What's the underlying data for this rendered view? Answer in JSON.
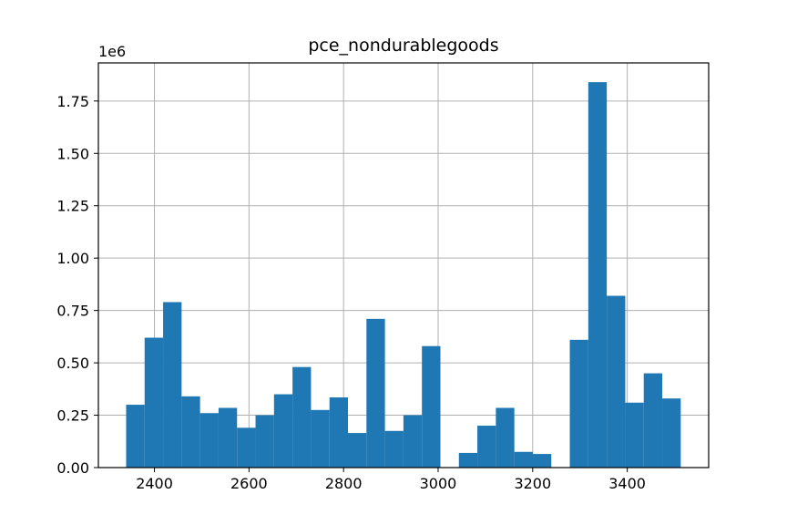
{
  "chart_data": {
    "type": "bar",
    "title": "pce_nondurablegoods",
    "y_offset_label": "1e6",
    "xlim": [
      2281.4,
      3572.2
    ],
    "ylim": [
      0,
      1.932
    ],
    "x_ticks": [
      2400,
      2600,
      2800,
      3000,
      3200,
      3400
    ],
    "x_tick_labels": [
      "2400",
      "2600",
      "2800",
      "3000",
      "3200",
      "3400"
    ],
    "y_ticks": [
      0,
      0.25,
      0.5,
      0.75,
      1.0,
      1.25,
      1.5,
      1.75
    ],
    "y_tick_labels": [
      "0.00",
      "0.25",
      "0.50",
      "0.75",
      "1.00",
      "1.25",
      "1.50",
      "1.75"
    ],
    "grid": true,
    "bar_color": "#1f77b4",
    "bins": [
      {
        "x0": 2340.1,
        "x1": 2379.2,
        "value": 0.3
      },
      {
        "x0": 2379.2,
        "x1": 2418.3,
        "value": 0.62
      },
      {
        "x0": 2418.3,
        "x1": 2457.4,
        "value": 0.79
      },
      {
        "x0": 2457.4,
        "x1": 2496.5,
        "value": 0.34
      },
      {
        "x0": 2496.5,
        "x1": 2535.6,
        "value": 0.26
      },
      {
        "x0": 2535.6,
        "x1": 2574.7,
        "value": 0.285
      },
      {
        "x0": 2574.7,
        "x1": 2613.8,
        "value": 0.19
      },
      {
        "x0": 2613.8,
        "x1": 2652.9,
        "value": 0.25
      },
      {
        "x0": 2652.9,
        "x1": 2692.0,
        "value": 0.35
      },
      {
        "x0": 2692.0,
        "x1": 2731.1,
        "value": 0.48
      },
      {
        "x0": 2731.1,
        "x1": 2770.2,
        "value": 0.275
      },
      {
        "x0": 2770.2,
        "x1": 2809.3,
        "value": 0.335
      },
      {
        "x0": 2809.3,
        "x1": 2848.4,
        "value": 0.165
      },
      {
        "x0": 2848.4,
        "x1": 2887.5,
        "value": 0.71
      },
      {
        "x0": 2887.5,
        "x1": 2926.6,
        "value": 0.175
      },
      {
        "x0": 2926.6,
        "x1": 2965.7,
        "value": 0.25
      },
      {
        "x0": 2965.7,
        "x1": 3004.8,
        "value": 0.58
      },
      {
        "x0": 3004.8,
        "x1": 3043.9,
        "value": 0.0
      },
      {
        "x0": 3043.9,
        "x1": 3083.0,
        "value": 0.07
      },
      {
        "x0": 3083.0,
        "x1": 3122.1,
        "value": 0.2
      },
      {
        "x0": 3122.1,
        "x1": 3161.2,
        "value": 0.285
      },
      {
        "x0": 3161.2,
        "x1": 3200.3,
        "value": 0.075
      },
      {
        "x0": 3200.3,
        "x1": 3239.4,
        "value": 0.065
      },
      {
        "x0": 3239.4,
        "x1": 3278.5,
        "value": 0.0
      },
      {
        "x0": 3278.5,
        "x1": 3317.6,
        "value": 0.61
      },
      {
        "x0": 3317.6,
        "x1": 3356.7,
        "value": 1.84
      },
      {
        "x0": 3356.7,
        "x1": 3395.8,
        "value": 0.82
      },
      {
        "x0": 3395.8,
        "x1": 3434.9,
        "value": 0.31
      },
      {
        "x0": 3434.9,
        "x1": 3474.0,
        "value": 0.45
      },
      {
        "x0": 3474.0,
        "x1": 3513.1,
        "value": 0.33
      }
    ]
  }
}
